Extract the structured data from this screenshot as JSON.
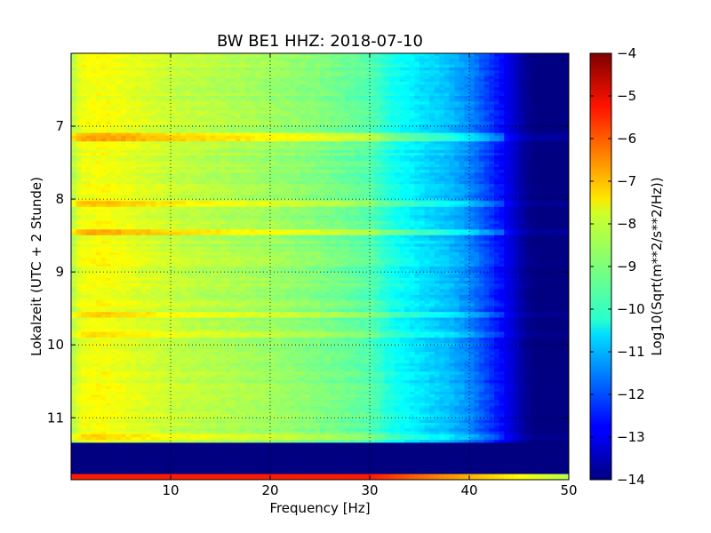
{
  "chart_data": {
    "type": "heatmap",
    "title": "BW BE1 HHZ: 2018-07-10",
    "xlabel": "Frequency [Hz]",
    "ylabel": "Lokalzeit (UTC + 2 Stunde)",
    "xlim": [
      0,
      50
    ],
    "ylim": [
      6.0,
      11.85
    ],
    "y_inverted": true,
    "x_ticks": [
      10,
      20,
      30,
      40,
      50
    ],
    "y_ticks": [
      7,
      8,
      9,
      10,
      11
    ],
    "grid": true,
    "colormap": "jet",
    "colorbar": {
      "label": "Log10(Sqrt(m**2/s**2/Hz))",
      "range": [
        -14,
        -4
      ],
      "ticks": [
        -14,
        -13,
        -12,
        -11,
        -10,
        -9,
        -8,
        -7,
        -6,
        -5,
        -4
      ]
    },
    "spectrum_profile": {
      "frequency_hz": [
        0,
        1,
        3,
        6,
        10,
        15,
        20,
        25,
        30,
        32,
        35,
        38,
        40,
        42,
        44,
        45,
        46,
        47,
        50
      ],
      "level": [
        -8.6,
        -7.9,
        -7.8,
        -8.0,
        -8.3,
        -8.5,
        -8.7,
        -9.0,
        -9.4,
        -10.0,
        -10.5,
        -10.9,
        -11.4,
        -12.2,
        -13.0,
        -13.5,
        -13.9,
        -14.0,
        -14.0
      ]
    },
    "high_noise_bands": [
      {
        "time": 7.15,
        "level_offset": 0.9
      },
      {
        "time": 8.05,
        "level_offset": 0.7
      },
      {
        "time": 8.45,
        "level_offset": 0.8
      },
      {
        "time": 9.6,
        "level_offset": 0.7
      },
      {
        "time": 9.85,
        "level_offset": 0.5
      },
      {
        "time": 11.25,
        "level_offset": 0.6
      }
    ],
    "data_gap": {
      "from_time": 11.35,
      "to_time": 11.7,
      "level": -14
    },
    "final_row": {
      "from_time": 11.78,
      "to_time": 11.85,
      "level": -5.5
    }
  }
}
